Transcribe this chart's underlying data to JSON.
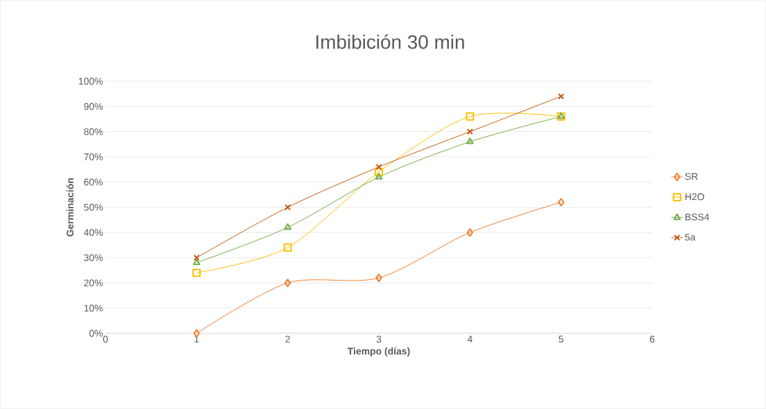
{
  "chart_data": {
    "type": "line",
    "title": "Imbibición 30 min",
    "xlabel": "Tiempo (días)",
    "ylabel": "Germinación",
    "x": [
      1,
      2,
      3,
      4,
      5
    ],
    "series": [
      {
        "name": "SR",
        "color": "#ed7d31",
        "marker": "diamond",
        "values": [
          0,
          20,
          22,
          40,
          52
        ]
      },
      {
        "name": "H2O",
        "color": "#ffc000",
        "marker": "square",
        "values": [
          24,
          34,
          64,
          86,
          86
        ]
      },
      {
        "name": "BSS4",
        "color": "#70ad47",
        "marker": "triangle",
        "values": [
          28,
          42,
          62,
          76,
          86
        ]
      },
      {
        "name": "5a",
        "color": "#c55a11",
        "marker": "cross",
        "values": [
          30,
          50,
          66,
          80,
          94
        ]
      }
    ],
    "xlim": [
      0,
      6
    ],
    "xticks": [
      0,
      1,
      2,
      3,
      4,
      5,
      6
    ],
    "ylim": [
      0,
      100
    ],
    "yticks": [
      {
        "value": 0,
        "label": "0%"
      },
      {
        "value": 10,
        "label": "10%"
      },
      {
        "value": 20,
        "label": "20%"
      },
      {
        "value": 30,
        "label": "30%"
      },
      {
        "value": 40,
        "label": "40%"
      },
      {
        "value": 50,
        "label": "50%"
      },
      {
        "value": 60,
        "label": "60%"
      },
      {
        "value": 70,
        "label": "70%"
      },
      {
        "value": 80,
        "label": "80%"
      },
      {
        "value": 90,
        "label": "90%"
      },
      {
        "value": 100,
        "label": "100%"
      }
    ],
    "grid": "y",
    "legend": "right"
  }
}
